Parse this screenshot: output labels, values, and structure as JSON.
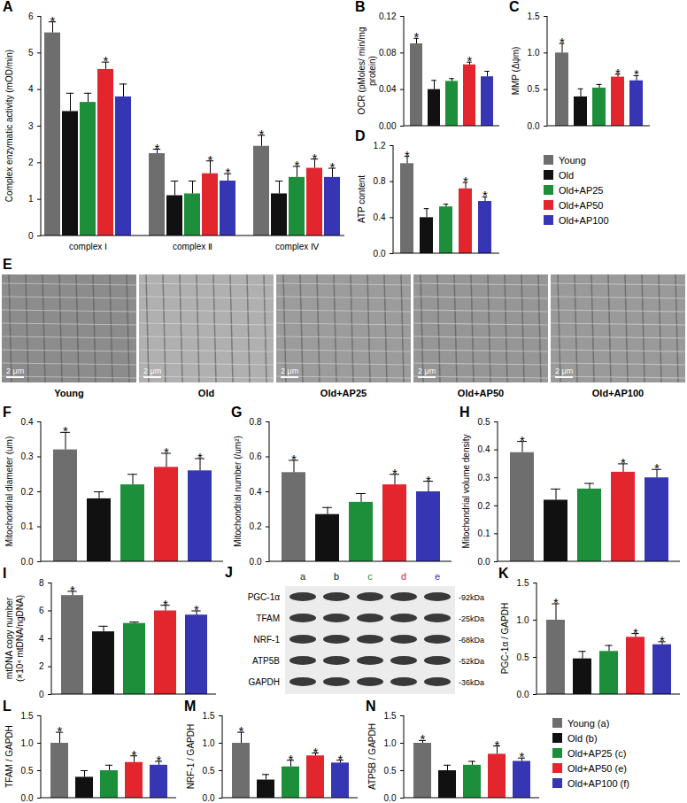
{
  "significance_mark": "*",
  "chart_data": [
    {
      "panel": "A",
      "type": "bar",
      "y_label": "Complex enzymatic activity (mOD/min)",
      "categories": [
        "complex Ⅰ",
        "complex Ⅱ",
        "complex Ⅳ"
      ],
      "series": [
        {
          "name": "Young",
          "color": "#6e6e6e",
          "values": [
            5.55,
            2.25,
            2.45
          ],
          "errors": [
            0.3,
            0.12,
            0.3
          ],
          "significant": [
            true,
            true,
            true
          ]
        },
        {
          "name": "Old",
          "color": "#111111",
          "values": [
            3.4,
            1.1,
            1.15
          ],
          "errors": [
            0.5,
            0.4,
            0.35
          ],
          "significant": [
            false,
            false,
            false
          ]
        },
        {
          "name": "Old+AP25",
          "color": "#1d8f3a",
          "values": [
            3.65,
            1.15,
            1.6
          ],
          "errors": [
            0.25,
            0.35,
            0.3
          ],
          "significant": [
            false,
            false,
            true
          ]
        },
        {
          "name": "Old+AP50",
          "color": "#e3262e",
          "values": [
            4.55,
            1.7,
            1.85
          ],
          "errors": [
            0.2,
            0.35,
            0.25
          ],
          "significant": [
            true,
            true,
            true
          ]
        },
        {
          "name": "Old+AP100",
          "color": "#3636b4",
          "values": [
            3.8,
            1.5,
            1.6
          ],
          "errors": [
            0.35,
            0.2,
            0.25
          ],
          "significant": [
            false,
            true,
            true
          ]
        }
      ],
      "ylim": [
        0,
        6
      ],
      "yticks": [
        0,
        1,
        2,
        3,
        4,
        5,
        6
      ]
    },
    {
      "panel": "B",
      "type": "bar",
      "y_label": "OCR (pMoles/ min/mg protein)",
      "tick_labels": "y",
      "categories": [
        "Young",
        "Old",
        "Old+AP25",
        "Old+AP50",
        "Old+AP100"
      ],
      "colors": [
        "#6e6e6e",
        "#111111",
        "#1d8f3a",
        "#e3262e",
        "#3636b4"
      ],
      "values": [
        0.09,
        0.04,
        0.049,
        0.067,
        0.054
      ],
      "errors": [
        0.006,
        0.01,
        0.003,
        0.003,
        0.006
      ],
      "significant": [
        true,
        false,
        false,
        true,
        false
      ],
      "ylim": [
        0,
        0.12
      ],
      "yticks": [
        {
          "value": 0,
          "label": "0.00"
        },
        0.04,
        0.08,
        0.12
      ]
    },
    {
      "panel": "C",
      "type": "bar",
      "y_label": "MMP (Δψm)",
      "tick_labels": "y",
      "categories": [
        "Young",
        "Old",
        "Old+AP25",
        "Old+AP50",
        "Old+AP100"
      ],
      "colors": [
        "#6e6e6e",
        "#111111",
        "#1d8f3a",
        "#e3262e",
        "#3636b4"
      ],
      "values": [
        1.0,
        0.4,
        0.52,
        0.67,
        0.62
      ],
      "errors": [
        0.13,
        0.11,
        0.05,
        0.04,
        0.07
      ],
      "significant": [
        true,
        false,
        false,
        true,
        true
      ],
      "ylim": [
        0,
        1.5
      ],
      "yticks": [
        {
          "value": 0,
          "label": "0.0"
        },
        0.5,
        {
          "value": 1,
          "label": "1.0"
        },
        1.5
      ]
    },
    {
      "panel": "D",
      "type": "bar",
      "y_label": "ATP content",
      "tick_labels": "y",
      "categories": [
        "Young",
        "Old",
        "Old+AP25",
        "Old+AP50",
        "Old+AP100"
      ],
      "colors": [
        "#6e6e6e",
        "#111111",
        "#1d8f3a",
        "#e3262e",
        "#3636b4"
      ],
      "values": [
        1.0,
        0.4,
        0.52,
        0.72,
        0.58
      ],
      "errors": [
        0.08,
        0.1,
        0.03,
        0.07,
        0.05
      ],
      "significant": [
        true,
        false,
        false,
        true,
        true
      ],
      "ylim": [
        0,
        1.2
      ],
      "yticks": [
        {
          "value": 0,
          "label": "0.0"
        },
        0.4,
        0.8,
        1.2
      ]
    },
    {
      "panel": "F",
      "type": "bar",
      "y_label": "Mitochondrial diameter (um)",
      "tick_labels": "y",
      "categories": [
        "Young",
        "Old",
        "Old+AP25",
        "Old+AP50",
        "Old+AP100"
      ],
      "colors": [
        "#6e6e6e",
        "#111111",
        "#1d8f3a",
        "#e3262e",
        "#3636b4"
      ],
      "values": [
        0.32,
        0.18,
        0.22,
        0.27,
        0.26
      ],
      "errors": [
        0.05,
        0.02,
        0.03,
        0.04,
        0.035
      ],
      "significant": [
        true,
        false,
        false,
        true,
        true
      ],
      "ylim": [
        0,
        0.4
      ],
      "yticks": [
        {
          "value": 0,
          "label": "0.0"
        },
        0.1,
        0.2,
        0.3,
        0.4
      ]
    },
    {
      "panel": "G",
      "type": "bar",
      "y_label": "Mitochondrial number (/um²)",
      "tick_labels": "y",
      "categories": [
        "Young",
        "Old",
        "Old+AP25",
        "Old+AP50",
        "Old+AP100"
      ],
      "colors": [
        "#6e6e6e",
        "#111111",
        "#1d8f3a",
        "#e3262e",
        "#3636b4"
      ],
      "values": [
        0.51,
        0.27,
        0.34,
        0.44,
        0.4
      ],
      "errors": [
        0.07,
        0.04,
        0.05,
        0.06,
        0.06
      ],
      "significant": [
        true,
        false,
        false,
        true,
        true
      ],
      "ylim": [
        0,
        0.8
      ],
      "yticks": [
        {
          "value": 0,
          "label": "0.0"
        },
        0.2,
        0.4,
        0.6,
        0.8
      ]
    },
    {
      "panel": "H",
      "type": "bar",
      "y_label": "Mitochondrial volume density",
      "tick_labels": "y",
      "categories": [
        "Young",
        "Old",
        "Old+AP25",
        "Old+AP50",
        "Old+AP100"
      ],
      "colors": [
        "#6e6e6e",
        "#111111",
        "#1d8f3a",
        "#e3262e",
        "#3636b4"
      ],
      "values": [
        0.39,
        0.22,
        0.26,
        0.32,
        0.3
      ],
      "errors": [
        0.04,
        0.04,
        0.02,
        0.03,
        0.03
      ],
      "significant": [
        true,
        false,
        false,
        true,
        true
      ],
      "ylim": [
        0,
        0.5
      ],
      "yticks": [
        {
          "value": 0,
          "label": "0.0"
        },
        0.1,
        0.2,
        0.3,
        0.4,
        0.5
      ]
    },
    {
      "panel": "I",
      "type": "bar",
      "y_label": "mtDNA copy number (×10⁴ mtDNA/ngDNA)",
      "tick_labels": "y",
      "categories": [
        "Young",
        "Old",
        "Old+AP25",
        "Old+AP50",
        "Old+AP100"
      ],
      "colors": [
        "#6e6e6e",
        "#111111",
        "#1d8f3a",
        "#e3262e",
        "#3636b4"
      ],
      "values": [
        7.1,
        4.5,
        5.1,
        6.0,
        5.7
      ],
      "errors": [
        0.3,
        0.4,
        0.1,
        0.4,
        0.3
      ],
      "significant": [
        true,
        false,
        false,
        true,
        true
      ],
      "ylim": [
        0,
        8
      ],
      "yticks": [
        0,
        2,
        4,
        6,
        8
      ]
    },
    {
      "panel": "K",
      "type": "bar",
      "y_label": "PGC-1α / GAPDH",
      "tick_labels": "y",
      "categories": [
        "Young (a)",
        "Old (b)",
        "Old+AP25 (c)",
        "Old+AP50 (e)",
        "Old+AP100 (f)"
      ],
      "colors": [
        "#6e6e6e",
        "#111111",
        "#1d8f3a",
        "#e3262e",
        "#3636b4"
      ],
      "values": [
        1.0,
        0.48,
        0.58,
        0.77,
        0.67
      ],
      "errors": [
        0.22,
        0.1,
        0.08,
        0.05,
        0.04
      ],
      "significant": [
        true,
        false,
        false,
        true,
        true
      ],
      "ylim": [
        0,
        1.5
      ],
      "yticks": [
        {
          "value": 0,
          "label": "0.0"
        },
        0.5,
        {
          "value": 1,
          "label": "1.0"
        },
        1.5
      ]
    },
    {
      "panel": "L",
      "type": "bar",
      "y_label": "TFAM / GAPDH",
      "tick_labels": "y",
      "categories": [
        "Young (a)",
        "Old (b)",
        "Old+AP25 (c)",
        "Old+AP50 (e)",
        "Old+AP100 (f)"
      ],
      "colors": [
        "#6e6e6e",
        "#111111",
        "#1d8f3a",
        "#e3262e",
        "#3636b4"
      ],
      "values": [
        1.0,
        0.38,
        0.5,
        0.65,
        0.6
      ],
      "errors": [
        0.2,
        0.12,
        0.1,
        0.12,
        0.07
      ],
      "significant": [
        true,
        false,
        false,
        true,
        true
      ],
      "ylim": [
        0,
        1.5
      ],
      "yticks": [
        {
          "value": 0,
          "label": "0.0"
        },
        0.5,
        {
          "value": 1,
          "label": "1.0"
        },
        1.5
      ]
    },
    {
      "panel": "M",
      "type": "bar",
      "y_label": "NRF-1 / GAPDH",
      "tick_labels": "y",
      "categories": [
        "Young (a)",
        "Old (b)",
        "Old+AP25 (c)",
        "Old+AP50 (e)",
        "Old+AP100 (f)"
      ],
      "colors": [
        "#6e6e6e",
        "#111111",
        "#1d8f3a",
        "#e3262e",
        "#3636b4"
      ],
      "values": [
        1.0,
        0.33,
        0.57,
        0.77,
        0.64
      ],
      "errors": [
        0.2,
        0.1,
        0.12,
        0.05,
        0.05
      ],
      "significant": [
        true,
        false,
        true,
        true,
        true
      ],
      "ylim": [
        0,
        1.5
      ],
      "yticks": [
        {
          "value": 0,
          "label": "0.0"
        },
        0.5,
        {
          "value": 1,
          "label": "1.0"
        },
        1.5
      ]
    },
    {
      "panel": "N",
      "type": "bar",
      "y_label": "ATP5B / GAPDH",
      "tick_labels": "y",
      "categories": [
        "Young (a)",
        "Old (b)",
        "Old+AP25 (c)",
        "Old+AP50 (e)",
        "Old+AP100 (f)"
      ],
      "colors": [
        "#6e6e6e",
        "#111111",
        "#1d8f3a",
        "#e3262e",
        "#3636b4"
      ],
      "values": [
        1.0,
        0.5,
        0.6,
        0.8,
        0.67
      ],
      "errors": [
        0.05,
        0.1,
        0.07,
        0.15,
        0.06
      ],
      "significant": [
        true,
        false,
        false,
        true,
        true
      ],
      "ylim": [
        0,
        1.5
      ],
      "yticks": [
        {
          "value": 0,
          "label": "0.0"
        },
        0.5,
        {
          "value": 1,
          "label": "1.0"
        },
        1.5
      ]
    }
  ],
  "panel_E": {
    "panel": "E",
    "captions": [
      "Young",
      "Old",
      "Old+AP25",
      "Old+AP50",
      "Old+AP100"
    ],
    "scale_bar": "2 μm"
  },
  "panel_J": {
    "panel": "J",
    "lanes": [
      "a",
      "b",
      "c",
      "d",
      "e"
    ],
    "colors": [
      "#222222",
      "#111111",
      "#1d8f3a",
      "#e3262e",
      "#3636b4"
    ],
    "proteins": [
      "PGC-1α",
      "TFAM",
      "NRF-1",
      "ATP5B",
      "GAPDH"
    ],
    "sizes": [
      "-92kDa",
      "-25kDa",
      "-68kDa",
      "-52kDa",
      "-36kDa"
    ]
  }
}
